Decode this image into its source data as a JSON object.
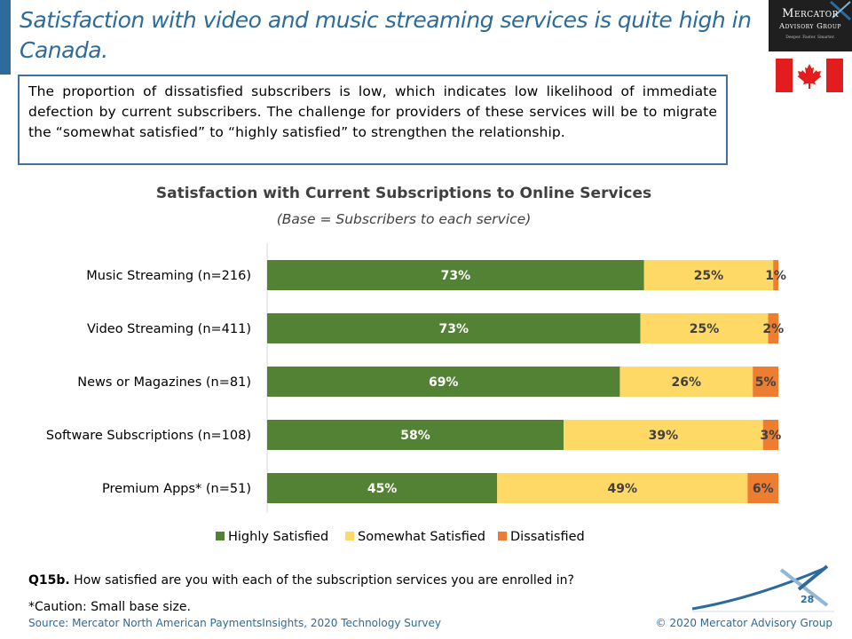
{
  "slide": {
    "title": "Satisfaction with video and music streaming services is quite high in Canada.",
    "callout": "The proportion of dissatisfied subscribers is low, which indicates low likelihood of immediate defection by current subscribers. The challenge for providers of these services will be to migrate the “somewhat satisfied” to “highly satisfied” to strengthen the relationship.",
    "question_label": "Q15b.",
    "question_text": " How satisfied are you with each of the subscription services you are enrolled in?",
    "caution": "*Caution: Small base size.",
    "source": "Source: Mercator North American PaymentsInsights, 2020 Technology Survey",
    "copyright": "© 2020  Mercator Advisory Group",
    "page_number": "28"
  },
  "logo": {
    "line1": "Mercator",
    "line2": "Advisory Group",
    "tagline": "Deeper. Faster. Smarter."
  },
  "flag": {
    "country": "Canada",
    "icon": "canada-flag-icon"
  },
  "colors": {
    "title_blue": "#2c6b9a",
    "highly": "#548235",
    "somewhat": "#ffd966",
    "dissatisfied": "#ed7d31"
  },
  "chart_data": {
    "type": "bar",
    "orientation": "horizontal",
    "stacked": true,
    "title": "Satisfaction with Current Subscriptions to Online Services",
    "subtitle": "(Base = Subscribers to each service)",
    "categories": [
      "Music Streaming (n=216)",
      "Video Streaming (n=411)",
      "News or Magazines (n=81)",
      "Software Subscriptions (n=108)",
      "Premium Apps* (n=51)"
    ],
    "series": [
      {
        "name": "Highly Satisfied",
        "color": "#548235",
        "values": [
          73,
          73,
          69,
          58,
          45
        ]
      },
      {
        "name": "Somewhat Satisfied",
        "color": "#ffd966",
        "values": [
          25,
          25,
          26,
          39,
          49
        ]
      },
      {
        "name": "Dissatisfied",
        "color": "#ed7d31",
        "values": [
          1,
          2,
          5,
          3,
          6
        ]
      }
    ],
    "value_suffix": "%",
    "legend_position": "bottom",
    "grid": false
  }
}
